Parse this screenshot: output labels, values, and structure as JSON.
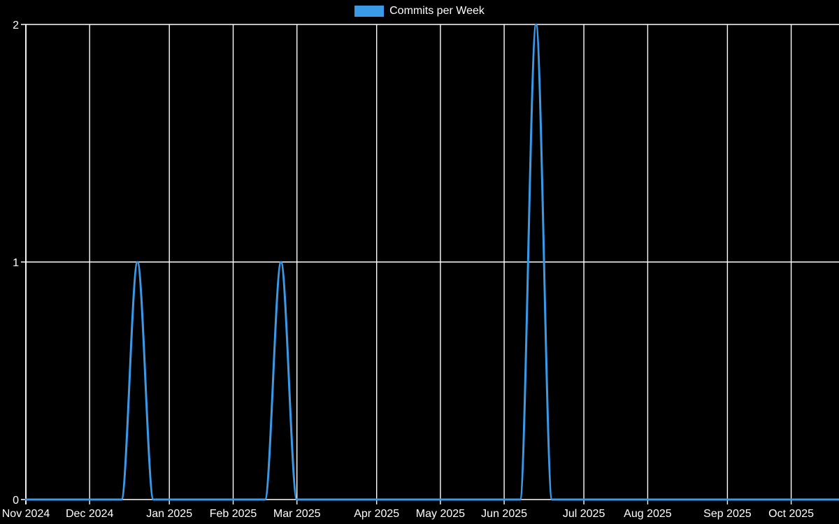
{
  "page": {
    "background": "#000000"
  },
  "chart_data": {
    "type": "line",
    "title": "Commits per Week",
    "legend": {
      "label": "Commits per Week",
      "position": "top-center",
      "swatch_color": "#3a9ae8"
    },
    "grid": true,
    "colors": {
      "background": "#000000",
      "gridline": "#ffffff",
      "axis": "#ffffff",
      "text": "#ffffff",
      "line": "#3a9ae8"
    },
    "x_axis": {
      "type": "weekly-category",
      "num_weeks": 52,
      "tick_labels": [
        "Nov 2024",
        "Dec 2024",
        "Jan 2025",
        "Feb 2025",
        "Mar 2025",
        "Apr 2025",
        "May 2025",
        "Jun 2025",
        "Jul 2025",
        "Aug 2025",
        "Sep 2025",
        "Oct 2025"
      ],
      "tick_week_indices": [
        0,
        4,
        9,
        13,
        17,
        22,
        26,
        30,
        35,
        39,
        44,
        48
      ]
    },
    "y_axis": {
      "min": 0,
      "max": 2,
      "ticks": [
        0,
        1,
        2
      ],
      "tick_labels": [
        "0",
        "1",
        "2"
      ]
    },
    "series": [
      {
        "name": "Commits per Week",
        "color": "#3a9ae8",
        "line_width": 3,
        "interpolation": "monotone",
        "values": [
          0,
          0,
          0,
          0,
          0,
          0,
          0,
          1,
          0,
          0,
          0,
          0,
          0,
          0,
          0,
          0,
          1,
          0,
          0,
          0,
          0,
          0,
          0,
          0,
          0,
          0,
          0,
          0,
          0,
          0,
          0,
          0,
          2,
          0,
          0,
          0,
          0,
          0,
          0,
          0,
          0,
          0,
          0,
          0,
          0,
          0,
          0,
          0,
          0,
          0,
          0,
          0
        ]
      }
    ],
    "peaks_note": [
      {
        "week_index": 7,
        "value": 1
      },
      {
        "week_index": 16,
        "value": 1
      },
      {
        "week_index": 32,
        "value": 2
      }
    ]
  }
}
